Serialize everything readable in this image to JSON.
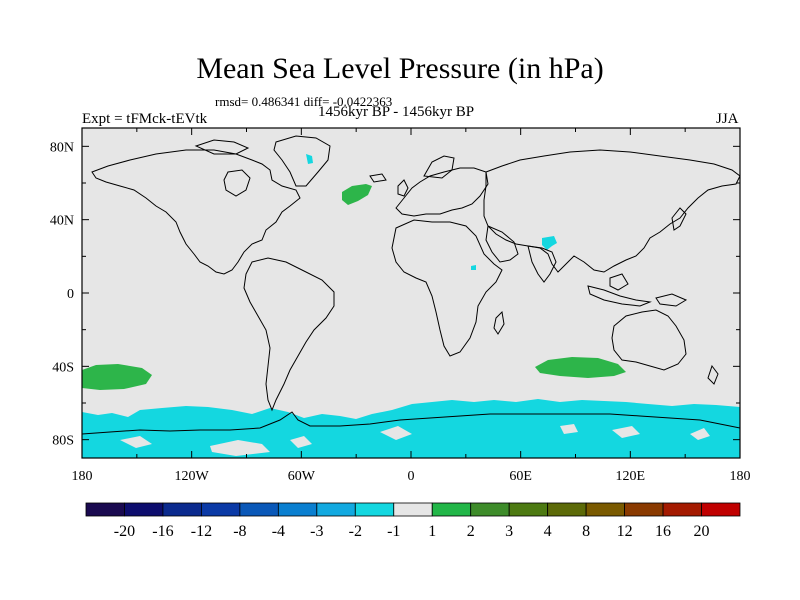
{
  "title": "Mean Sea Level Pressure (in hPa)",
  "subtitle": "rmsd= 0.486341 diff= -0.0422363",
  "left_label": "Expt = tFMck-tEVtk",
  "center_label": "1456kyr BP - 1456kyr BP",
  "right_label": "JJA",
  "map": {
    "projection": "cylindrical equidistant",
    "lon_range": [
      -180,
      180
    ],
    "lat_range": [
      -90,
      90
    ],
    "lon_ticks": [
      {
        "value": -180,
        "label": "180"
      },
      {
        "value": -120,
        "label": "120W"
      },
      {
        "value": -60,
        "label": "60W"
      },
      {
        "value": 0,
        "label": "0"
      },
      {
        "value": 60,
        "label": "60E"
      },
      {
        "value": 120,
        "label": "120E"
      },
      {
        "value": 180,
        "label": "180"
      }
    ],
    "lat_ticks": [
      {
        "value": 80,
        "label": "80N"
      },
      {
        "value": 40,
        "label": "40N"
      },
      {
        "value": 0,
        "label": "0"
      },
      {
        "value": -40,
        "label": "40S"
      },
      {
        "value": -80,
        "label": "80S"
      }
    ],
    "background_color": "#e6e6e6",
    "anomaly_regions": [
      {
        "name": "north-atlantic-positive",
        "level": "1 to 2",
        "color": "#2db54a"
      },
      {
        "name": "greenland-negative",
        "level": "-2 to -1",
        "color": "#14d7e0"
      },
      {
        "name": "tibet-negative",
        "level": "-2 to -1",
        "color": "#14d7e0"
      },
      {
        "name": "east-africa-negative",
        "level": "-2 to -1",
        "color": "#14d7e0"
      },
      {
        "name": "south-pacific-positive",
        "level": "1 to 2",
        "color": "#2db54a"
      },
      {
        "name": "south-indian-positive",
        "level": "1 to 2",
        "color": "#2db54a"
      },
      {
        "name": "southern-ocean-negative",
        "level": "-2 to -1",
        "color": "#14d7e0"
      }
    ]
  },
  "colorbar": {
    "colors": [
      "#1a0a50",
      "#0d0d6e",
      "#0b2a8e",
      "#0b3aa6",
      "#0a58b8",
      "#0a7fd0",
      "#12a9e0",
      "#14d7e0",
      "#e6e6e6",
      "#22b648",
      "#3e8c2a",
      "#4d7a12",
      "#5c6a08",
      "#7a5a00",
      "#8a3a00",
      "#a41a00",
      "#c00000"
    ],
    "labels": [
      "-20",
      "-16",
      "-12",
      "-8",
      "-4",
      "-3",
      "-2",
      "-1",
      "1",
      "2",
      "3",
      "4",
      "8",
      "12",
      "16",
      "20"
    ]
  }
}
